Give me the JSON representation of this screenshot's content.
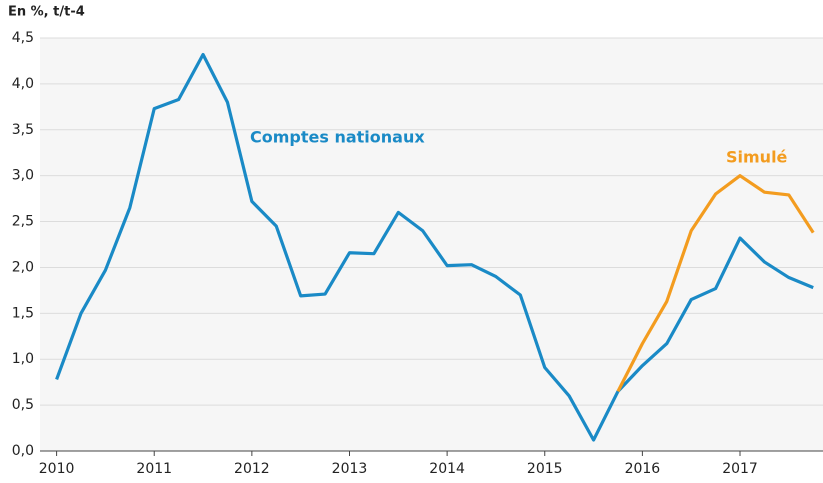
{
  "chart_data": {
    "type": "line",
    "y_label": "En %, t/t-4",
    "x": [
      2010,
      2010.25,
      2010.5,
      2010.75,
      2011,
      2011.25,
      2011.5,
      2011.75,
      2012,
      2012.25,
      2012.5,
      2012.75,
      2013,
      2013.25,
      2013.5,
      2013.75,
      2014,
      2014.25,
      2014.5,
      2014.75,
      2015,
      2015.25,
      2015.5,
      2015.75,
      2016,
      2016.25,
      2016.5,
      2016.75,
      2017,
      2017.25,
      2017.5,
      2017.75
    ],
    "series": [
      {
        "name": "Comptes nationaux",
        "color": "#1a8ac6",
        "values": [
          0.78,
          1.5,
          1.97,
          2.65,
          3.73,
          3.83,
          4.32,
          3.8,
          2.72,
          2.45,
          1.69,
          1.71,
          2.16,
          2.15,
          2.6,
          2.4,
          2.02,
          2.03,
          1.9,
          1.7,
          0.91,
          0.6,
          0.12,
          0.65,
          0.93,
          1.17,
          1.65,
          1.77,
          2.32,
          2.06,
          1.89,
          1.78
        ]
      },
      {
        "name": "Simulé",
        "color": "#f39c1f",
        "values": [
          null,
          null,
          null,
          null,
          null,
          null,
          null,
          null,
          null,
          null,
          null,
          null,
          null,
          null,
          null,
          null,
          null,
          null,
          null,
          null,
          null,
          null,
          null,
          0.65,
          1.17,
          1.63,
          2.4,
          2.8,
          3.0,
          2.82,
          2.79,
          2.38
        ]
      }
    ],
    "xlim": [
      2009.83,
      2017.85
    ],
    "xticks": [
      2010,
      2011,
      2012,
      2013,
      2014,
      2015,
      2016,
      2017
    ],
    "ylim": [
      0,
      4.5
    ],
    "yticks": [
      {
        "value": 0,
        "label": "0,0"
      },
      {
        "value": 0.5,
        "label": "0,5"
      },
      {
        "value": 1,
        "label": "1,0"
      },
      {
        "value": 1.5,
        "label": "1,5"
      },
      {
        "value": 2,
        "label": "2,0"
      },
      {
        "value": 2.5,
        "label": "2,5"
      },
      {
        "value": 3,
        "label": "3,0"
      },
      {
        "value": 3.5,
        "label": "3,5"
      },
      {
        "value": 4,
        "label": "4,0"
      },
      {
        "value": 4.5,
        "label": "4,5"
      }
    ],
    "grid": true
  }
}
